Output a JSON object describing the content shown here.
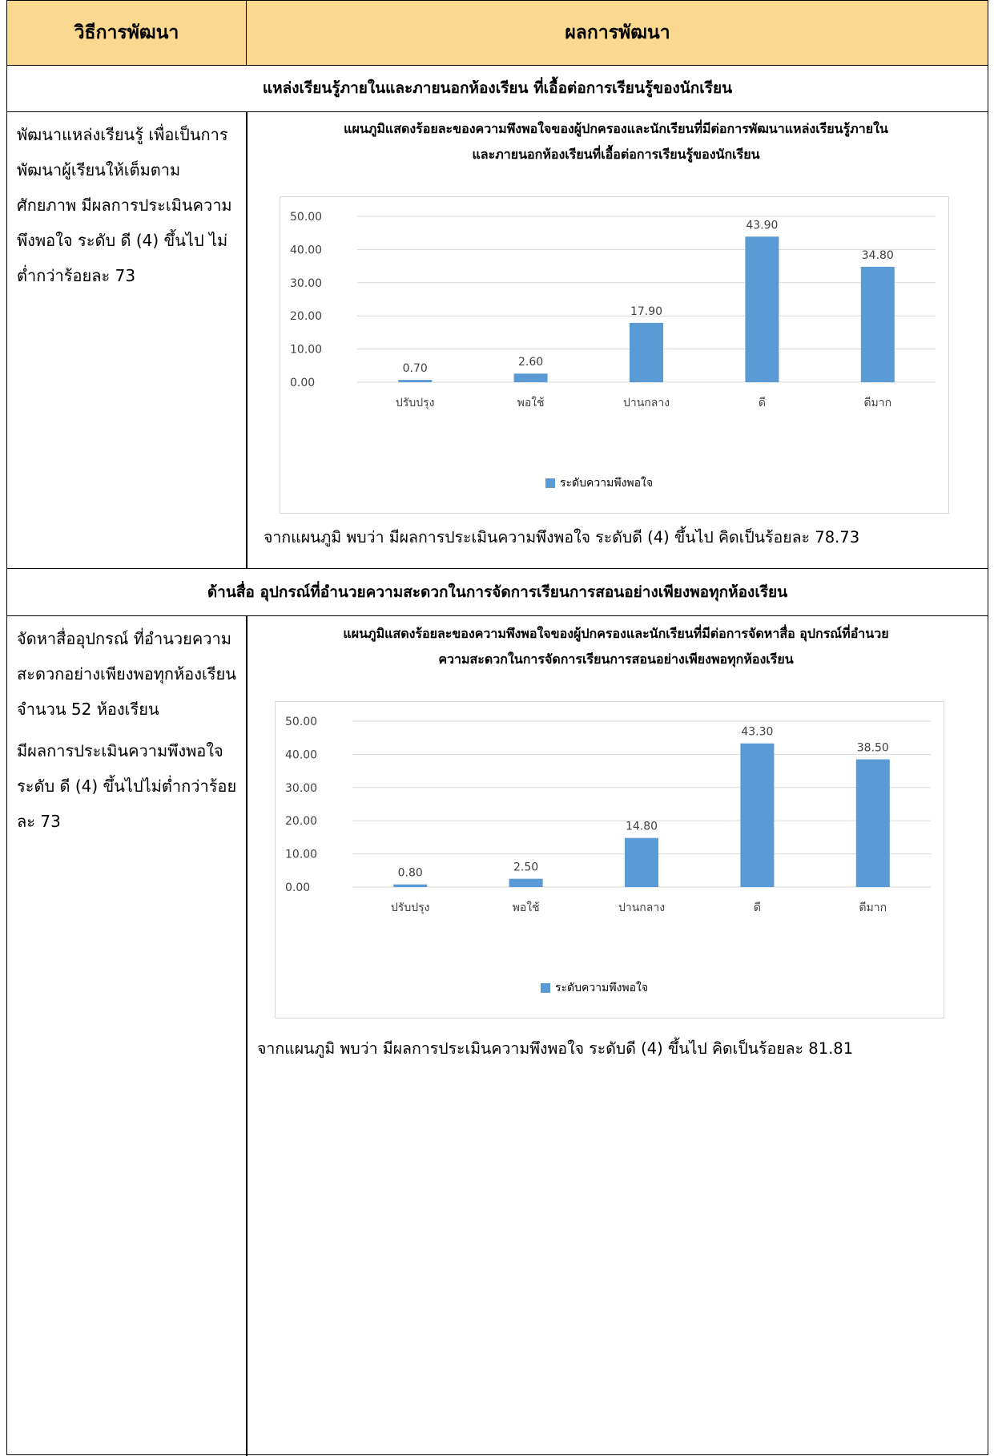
{
  "header": {
    "col1": "วิธีการพัฒนา",
    "col2": "ผลการพัฒนา"
  },
  "section1": {
    "title": "แหล่งเรียนรู้ภายในและภายนอกห้องเรียน ที่เอื้อต่อการเรียนรู้ของนักเรียน",
    "left_text": "พัฒนาแหล่งเรียนรู้ เพื่อเป็นการพัฒนาผู้เรียนให้เต็มตามศักยภาพ มีผลการประเมินความพึงพอใจ ระดับ ดี (4) ขึ้นไป ไม่ต่ำกว่าร้อยละ 73",
    "conclusion": "จากแผนภูมิ พบว่า มีผลการประเมินความพึงพอใจ ระดับดี (4) ขึ้นไป คิดเป็นร้อยละ 78.73"
  },
  "section2": {
    "title": "ด้านสื่อ อุปกรณ์ที่อำนวยความสะดวกในการจัดการเรียนการสอนอย่างเพียงพอทุกห้องเรียน",
    "left_text_1": "จัดหาสื่ออุปกรณ์ ที่อำนวยความสะดวกอย่างเพียงพอทุกห้องเรียน จำนวน 52 ห้องเรียน",
    "left_text_2": "มีผลการประเมินความพึงพอใจ ระดับ ดี (4) ขึ้นไปไม่ต่ำกว่าร้อยละ 73",
    "conclusion": "จากแผนภูมิ พบว่า มีผลการประเมินความพึงพอใจ ระดับดี (4) ขึ้นไป คิดเป็นร้อยละ 81.81"
  },
  "colors": {
    "header_bg": "#fbd88f",
    "bar": "#5b9bd5",
    "grid": "#d9d9d9"
  },
  "chart_data": [
    {
      "type": "bar",
      "title_line1": "แผนภูมิแสดงร้อยละของความพึงพอใจของผู้ปกครองและนักเรียนที่มีต่อการพัฒนาแหล่งเรียนรู้ภายใน",
      "title_line2": "และภายนอกห้องเรียนที่เอื้อต่อการเรียนรู้ของนักเรียน",
      "categories": [
        "ปรับปรุง",
        "พอใช้",
        "ปานกลาง",
        "ดี",
        "ดีมาก"
      ],
      "series": [
        {
          "name": "ระดับความพึงพอใจ",
          "values": [
            0.7,
            2.6,
            17.9,
            43.9,
            34.8
          ]
        }
      ],
      "value_labels": [
        "0.70",
        "2.60",
        "17.90",
        "43.90",
        "34.80"
      ],
      "yticks": [
        "0.00",
        "10.00",
        "20.00",
        "30.00",
        "40.00",
        "50.00"
      ],
      "ylim": [
        0,
        50
      ],
      "grid": true,
      "legend": "bottom"
    },
    {
      "type": "bar",
      "title_line1": "แผนภูมิแสดงร้อยละของความพึงพอใจของผู้ปกครองและนักเรียนที่มีต่อการจัดหาสื่อ อุปกรณ์ที่อำนวย",
      "title_line2": "ความสะดวกในการจัดการเรียนการสอนอย่างเพียงพอทุกห้องเรียน",
      "categories": [
        "ปรับปรุง",
        "พอใช้",
        "ปานกลาง",
        "ดี",
        "ดีมาก"
      ],
      "series": [
        {
          "name": "ระดับความพึงพอใจ",
          "values": [
            0.8,
            2.5,
            14.8,
            43.3,
            38.5
          ]
        }
      ],
      "value_labels": [
        "0.80",
        "2.50",
        "14.80",
        "43.30",
        "38.50"
      ],
      "yticks": [
        "0.00",
        "10.00",
        "20.00",
        "30.00",
        "40.00",
        "50.00"
      ],
      "ylim": [
        0,
        50
      ],
      "grid": true,
      "legend": "bottom"
    }
  ]
}
